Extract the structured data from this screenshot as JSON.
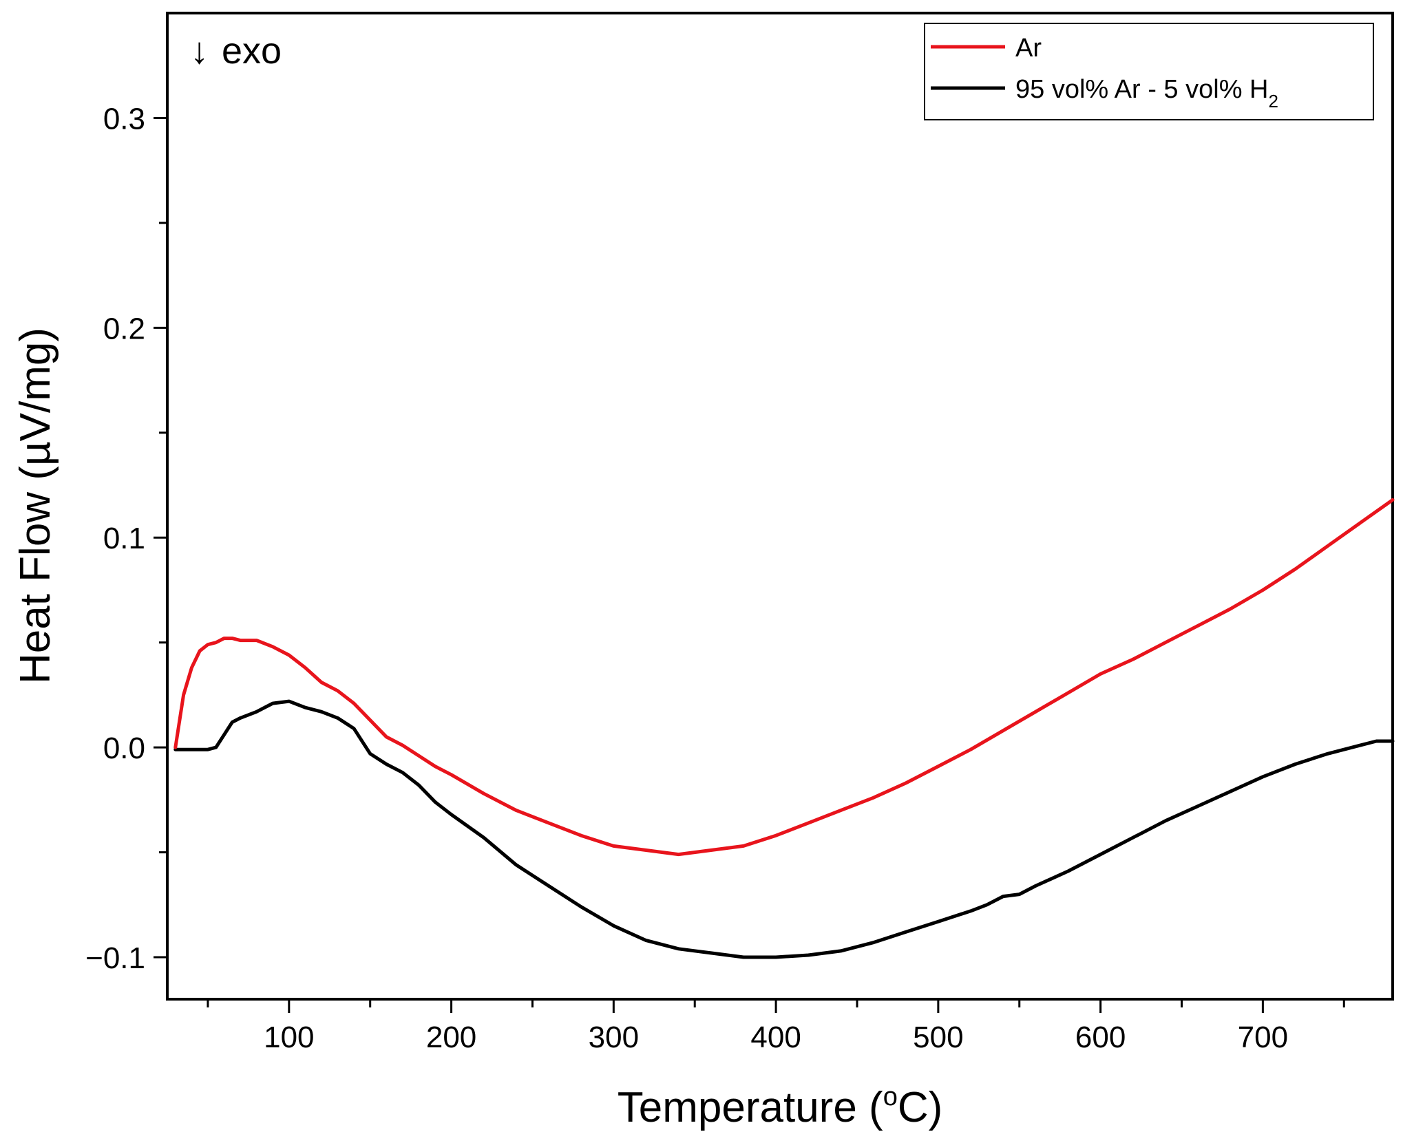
{
  "chart_data": {
    "type": "line",
    "title": "",
    "xlabel": "Temperature (",
    "xlabel_sup": "o",
    "xlabel_end": "C)",
    "ylabel": "Heat Flow (µV/mg)",
    "xlim": [
      25,
      780
    ],
    "ylim": [
      -0.12,
      0.35
    ],
    "x_ticks": [
      100,
      200,
      300,
      400,
      500,
      600,
      700
    ],
    "x_tick_labels": [
      "100",
      "200",
      "300",
      "400",
      "500",
      "600",
      "700"
    ],
    "x_minor_ticks": [
      50,
      150,
      250,
      350,
      450,
      550,
      650,
      750
    ],
    "y_ticks": [
      -0.1,
      0.0,
      0.1,
      0.2,
      0.3
    ],
    "y_tick_labels": [
      "−0.1",
      "0.0",
      "0.1",
      "0.2",
      "0.3"
    ],
    "y_minor_ticks": [
      -0.05,
      0.05,
      0.15,
      0.25
    ],
    "annotation": {
      "arrow": "↓",
      "text": "exo"
    },
    "legend": {
      "position": "top-right"
    },
    "series": [
      {
        "name": "Ar",
        "label_main": "Ar",
        "label_sub": "",
        "color": "#e8141c",
        "x": [
          30,
          35,
          40,
          45,
          50,
          55,
          60,
          65,
          70,
          80,
          90,
          100,
          110,
          120,
          130,
          140,
          150,
          160,
          170,
          180,
          190,
          200,
          220,
          240,
          260,
          280,
          300,
          320,
          340,
          360,
          380,
          400,
          420,
          440,
          460,
          480,
          500,
          520,
          540,
          560,
          580,
          600,
          620,
          640,
          660,
          680,
          700,
          720,
          740,
          760,
          780
        ],
        "y": [
          0.0,
          0.025,
          0.038,
          0.046,
          0.049,
          0.05,
          0.052,
          0.052,
          0.051,
          0.051,
          0.048,
          0.044,
          0.038,
          0.031,
          0.027,
          0.021,
          0.013,
          0.005,
          0.001,
          -0.004,
          -0.009,
          -0.013,
          -0.022,
          -0.03,
          -0.036,
          -0.042,
          -0.047,
          -0.049,
          -0.051,
          -0.049,
          -0.047,
          -0.042,
          -0.036,
          -0.03,
          -0.024,
          -0.017,
          -0.009,
          -0.001,
          0.008,
          0.017,
          0.026,
          0.035,
          0.042,
          0.05,
          0.058,
          0.066,
          0.075,
          0.085,
          0.096,
          0.107,
          0.118
        ]
      },
      {
        "name": "95 vol% Ar - 5 vol% H2",
        "label_main": "95 vol% Ar - 5 vol% H",
        "label_sub": "2",
        "color": "#000000",
        "x": [
          30,
          40,
          50,
          55,
          60,
          65,
          70,
          80,
          90,
          100,
          110,
          120,
          130,
          140,
          150,
          160,
          170,
          180,
          190,
          200,
          220,
          240,
          260,
          280,
          300,
          320,
          340,
          360,
          380,
          400,
          420,
          440,
          460,
          480,
          500,
          520,
          530,
          540,
          550,
          560,
          580,
          600,
          620,
          640,
          660,
          680,
          700,
          720,
          740,
          760,
          770,
          780
        ],
        "y": [
          -0.001,
          -0.001,
          -0.001,
          0.0,
          0.006,
          0.012,
          0.014,
          0.017,
          0.021,
          0.022,
          0.019,
          0.017,
          0.014,
          0.009,
          -0.003,
          -0.008,
          -0.012,
          -0.018,
          -0.026,
          -0.032,
          -0.043,
          -0.056,
          -0.066,
          -0.076,
          -0.085,
          -0.092,
          -0.096,
          -0.098,
          -0.1,
          -0.1,
          -0.099,
          -0.097,
          -0.093,
          -0.088,
          -0.083,
          -0.078,
          -0.075,
          -0.071,
          -0.07,
          -0.066,
          -0.059,
          -0.051,
          -0.043,
          -0.035,
          -0.028,
          -0.021,
          -0.014,
          -0.008,
          -0.003,
          0.001,
          0.003,
          0.003
        ]
      }
    ]
  }
}
